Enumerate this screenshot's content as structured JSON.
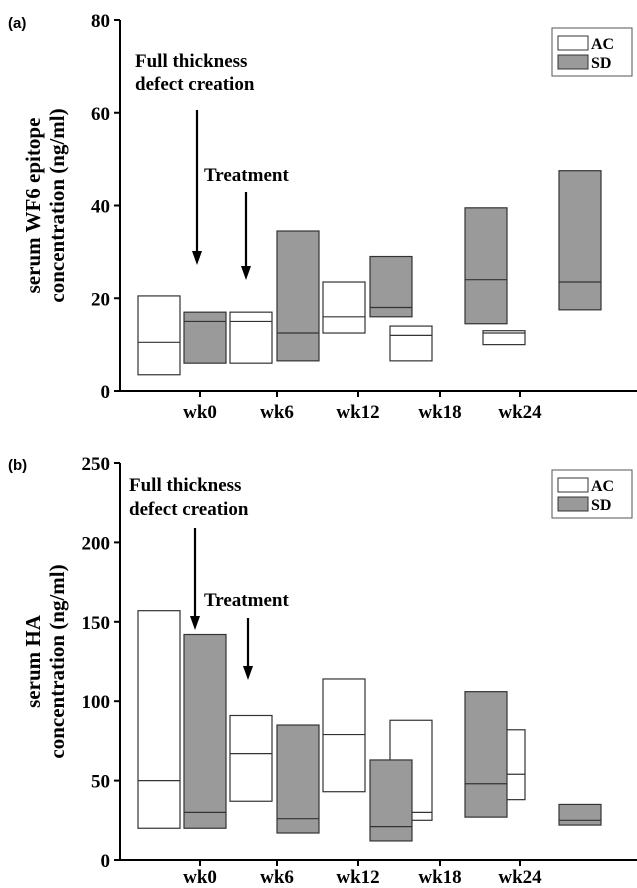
{
  "chart_data": [
    {
      "type": "box",
      "panel_label": "(a)",
      "ylabel_lines": [
        "serum WF6 epitope",
        "concentration (ng/ml)"
      ],
      "ylim": [
        0,
        80
      ],
      "yticks": [
        "0",
        "20",
        "40",
        "60",
        "80"
      ],
      "categories": [
        "wk0",
        "wk6",
        "wk12",
        "wk18",
        "wk24"
      ],
      "legend": [
        "AC",
        "SD"
      ],
      "colors": {
        "AC": "#ffffff",
        "SD": "#9a9a9a"
      },
      "series": [
        {
          "name": "AC",
          "boxes": [
            {
              "low": 3.5,
              "median": 10.5,
              "high": 20.5
            },
            {
              "low": 6,
              "median": 15,
              "high": 17
            },
            {
              "low": 12.5,
              "median": 16,
              "high": 23.5
            },
            {
              "low": 6.5,
              "median": 12,
              "high": 14
            },
            {
              "low": 10,
              "median": 12.5,
              "high": 13
            }
          ]
        },
        {
          "name": "SD",
          "boxes": [
            {
              "low": 6,
              "median": 15,
              "high": 17
            },
            {
              "low": 6.5,
              "median": 12.5,
              "high": 34.5
            },
            {
              "low": 16,
              "median": 18,
              "high": 29
            },
            {
              "low": 14.5,
              "median": 24,
              "high": 39.5
            },
            {
              "low": 17.5,
              "median": 23.5,
              "high": 47.5
            }
          ]
        }
      ],
      "annotations": [
        {
          "lines": [
            "Full thickness",
            "defect creation"
          ]
        },
        {
          "lines": [
            "Treatment"
          ]
        }
      ]
    },
    {
      "type": "box",
      "panel_label": "(b)",
      "ylabel_lines": [
        "serum HA",
        "concentration (ng/ml)"
      ],
      "ylim": [
        0,
        250
      ],
      "yticks": [
        "0",
        "50",
        "100",
        "150",
        "200",
        "250"
      ],
      "categories": [
        "wk0",
        "wk6",
        "wk12",
        "wk18",
        "wk24"
      ],
      "legend": [
        "AC",
        "SD"
      ],
      "colors": {
        "AC": "#ffffff",
        "SD": "#9a9a9a"
      },
      "series": [
        {
          "name": "AC",
          "boxes": [
            {
              "low": 20,
              "median": 50,
              "high": 157
            },
            {
              "low": 37,
              "median": 67,
              "high": 91
            },
            {
              "low": 43,
              "median": 79,
              "high": 114
            },
            {
              "low": 25,
              "median": 30,
              "high": 88
            },
            {
              "low": 38,
              "median": 54,
              "high": 82
            }
          ]
        },
        {
          "name": "SD",
          "boxes": [
            {
              "low": 20,
              "median": 30,
              "high": 142
            },
            {
              "low": 17,
              "median": 26,
              "high": 85
            },
            {
              "low": 12,
              "median": 21,
              "high": 63
            },
            {
              "low": 27,
              "median": 48,
              "high": 106
            },
            {
              "low": 22,
              "median": 25,
              "high": 35
            }
          ]
        }
      ],
      "annotations": [
        {
          "lines": [
            "Full thickness",
            "defect creation"
          ]
        },
        {
          "lines": [
            "Treatment"
          ]
        }
      ]
    }
  ]
}
